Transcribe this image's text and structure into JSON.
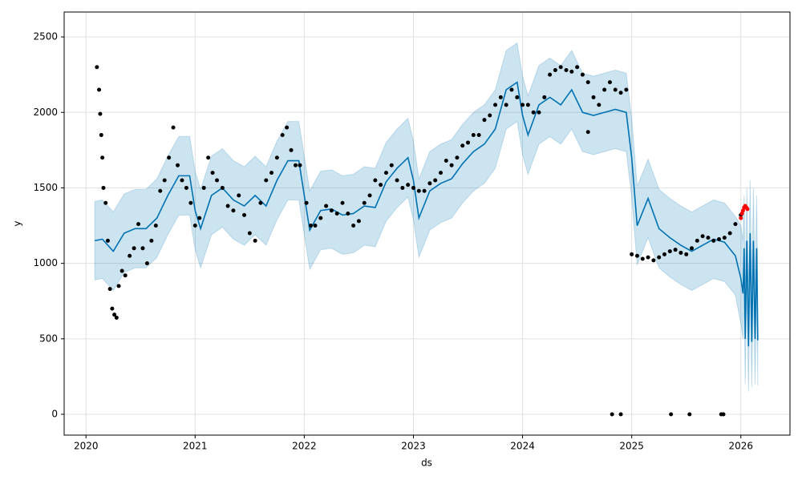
{
  "chart_data": {
    "type": "forecast",
    "xlabel": "ds",
    "ylabel": "y",
    "xlim": [
      2019.8,
      2026.45
    ],
    "xticks": [
      2020,
      2021,
      2022,
      2023,
      2024,
      2025,
      2026
    ],
    "ylim": [
      -138,
      2665
    ],
    "yticks": [
      0,
      500,
      1000,
      1500,
      2000,
      2500
    ],
    "grid": true,
    "forecast": {
      "color": "#0072b2",
      "band_color": "#0072b2",
      "x": [
        2020.08,
        2020.15,
        2020.25,
        2020.35,
        2020.45,
        2020.55,
        2020.65,
        2020.75,
        2020.85,
        2020.95,
        2021.0,
        2021.05,
        2021.15,
        2021.25,
        2021.35,
        2021.45,
        2021.55,
        2021.65,
        2021.75,
        2021.85,
        2021.95,
        2022.0,
        2022.05,
        2022.15,
        2022.25,
        2022.35,
        2022.45,
        2022.55,
        2022.65,
        2022.75,
        2022.85,
        2022.95,
        2023.0,
        2023.05,
        2023.15,
        2023.25,
        2023.35,
        2023.45,
        2023.55,
        2023.65,
        2023.75,
        2023.85,
        2023.95,
        2024.0,
        2024.05,
        2024.15,
        2024.25,
        2024.35,
        2024.45,
        2024.55,
        2024.65,
        2024.75,
        2024.85,
        2024.95,
        2025.0,
        2025.05,
        2025.15,
        2025.25,
        2025.35,
        2025.45,
        2025.55,
        2025.65,
        2025.75,
        2025.85,
        2025.95,
        2026.0,
        2026.02,
        2026.03,
        2026.04,
        2026.055,
        2026.07,
        2026.085,
        2026.1,
        2026.115,
        2026.13,
        2026.145,
        2026.155
      ],
      "values": [
        1150,
        1160,
        1080,
        1200,
        1230,
        1230,
        1300,
        1450,
        1580,
        1580,
        1350,
        1230,
        1450,
        1500,
        1420,
        1380,
        1450,
        1380,
        1550,
        1680,
        1680,
        1450,
        1220,
        1350,
        1360,
        1320,
        1330,
        1380,
        1370,
        1540,
        1630,
        1700,
        1550,
        1300,
        1480,
        1530,
        1560,
        1660,
        1740,
        1790,
        1890,
        2150,
        2200,
        1980,
        1850,
        2050,
        2100,
        2050,
        2150,
        2000,
        1980,
        2000,
        2020,
        2000,
        1700,
        1250,
        1430,
        1230,
        1170,
        1120,
        1080,
        1120,
        1160,
        1140,
        1050,
        900,
        800,
        1100,
        500,
        1150,
        450,
        1200,
        480,
        1150,
        500,
        1100,
        490
      ],
      "upper": [
        1410,
        1420,
        1340,
        1460,
        1490,
        1490,
        1560,
        1710,
        1840,
        1840,
        1610,
        1490,
        1710,
        1760,
        1680,
        1640,
        1710,
        1640,
        1810,
        1940,
        1940,
        1710,
        1480,
        1610,
        1620,
        1580,
        1590,
        1640,
        1630,
        1800,
        1890,
        1960,
        1810,
        1560,
        1740,
        1790,
        1820,
        1920,
        2000,
        2050,
        2150,
        2410,
        2460,
        2240,
        2110,
        2310,
        2360,
        2310,
        2410,
        2260,
        2240,
        2260,
        2280,
        2260,
        1960,
        1510,
        1690,
        1490,
        1430,
        1380,
        1340,
        1380,
        1420,
        1400,
        1310,
        1250,
        1150,
        1450,
        850,
        1500,
        800,
        1550,
        830,
        1500,
        850,
        1450,
        840
      ],
      "lower": [
        890,
        900,
        820,
        940,
        970,
        970,
        1040,
        1190,
        1320,
        1320,
        1090,
        970,
        1190,
        1240,
        1160,
        1120,
        1190,
        1120,
        1290,
        1420,
        1420,
        1190,
        960,
        1090,
        1100,
        1060,
        1070,
        1120,
        1110,
        1280,
        1370,
        1440,
        1290,
        1040,
        1220,
        1270,
        1300,
        1400,
        1480,
        1530,
        1630,
        1890,
        1940,
        1720,
        1590,
        1790,
        1840,
        1790,
        1890,
        1740,
        1720,
        1740,
        1760,
        1740,
        1440,
        990,
        1170,
        970,
        910,
        860,
        820,
        860,
        900,
        880,
        790,
        600,
        500,
        800,
        200,
        850,
        150,
        900,
        180,
        850,
        200,
        800,
        190
      ]
    },
    "observed": {
      "color": "#000000",
      "x": [
        2020.1,
        2020.12,
        2020.13,
        2020.14,
        2020.15,
        2020.16,
        2020.18,
        2020.2,
        2020.22,
        2020.24,
        2020.26,
        2020.28,
        2020.3,
        2020.33,
        2020.36,
        2020.4,
        2020.44,
        2020.48,
        2020.52,
        2020.56,
        2020.6,
        2020.64,
        2020.68,
        2020.72,
        2020.76,
        2020.8,
        2020.84,
        2020.88,
        2020.92,
        2020.96,
        2021.0,
        2021.04,
        2021.08,
        2021.12,
        2021.16,
        2021.2,
        2021.25,
        2021.3,
        2021.35,
        2021.4,
        2021.45,
        2021.5,
        2021.55,
        2021.6,
        2021.65,
        2021.7,
        2021.75,
        2021.8,
        2021.84,
        2021.88,
        2021.92,
        2021.96,
        2022.02,
        2022.06,
        2022.1,
        2022.15,
        2022.2,
        2022.25,
        2022.3,
        2022.35,
        2022.4,
        2022.45,
        2022.5,
        2022.55,
        2022.6,
        2022.65,
        2022.7,
        2022.75,
        2022.8,
        2022.85,
        2022.9,
        2022.95,
        2023.0,
        2023.05,
        2023.1,
        2023.15,
        2023.2,
        2023.25,
        2023.3,
        2023.35,
        2023.4,
        2023.45,
        2023.5,
        2023.55,
        2023.6,
        2023.65,
        2023.7,
        2023.75,
        2023.8,
        2023.85,
        2023.9,
        2023.95,
        2024.0,
        2024.05,
        2024.1,
        2024.15,
        2024.2,
        2024.25,
        2024.3,
        2024.35,
        2024.4,
        2024.45,
        2024.5,
        2024.55,
        2024.6,
        2024.65,
        2024.7,
        2024.75,
        2024.8,
        2024.85,
        2024.9,
        2024.95,
        2025.0,
        2025.05,
        2025.1,
        2025.15,
        2025.2,
        2025.25,
        2025.3,
        2025.35,
        2025.4,
        2025.45,
        2025.5,
        2025.55,
        2025.6,
        2025.65,
        2025.7,
        2025.75,
        2025.8,
        2025.85,
        2025.9,
        2025.95,
        2026.0,
        2024.82,
        2024.9,
        2025.36,
        2025.53,
        2025.82,
        2025.84,
        2024.6
      ],
      "values": [
        2300,
        2150,
        1990,
        1850,
        1700,
        1500,
        1400,
        1150,
        830,
        700,
        660,
        640,
        850,
        950,
        920,
        1050,
        1100,
        1260,
        1100,
        1000,
        1150,
        1250,
        1480,
        1550,
        1700,
        1900,
        1650,
        1550,
        1500,
        1400,
        1250,
        1300,
        1500,
        1700,
        1600,
        1550,
        1500,
        1380,
        1350,
        1450,
        1320,
        1200,
        1150,
        1400,
        1550,
        1600,
        1700,
        1850,
        1900,
        1750,
        1650,
        1650,
        1400,
        1250,
        1250,
        1300,
        1380,
        1350,
        1330,
        1400,
        1330,
        1250,
        1280,
        1400,
        1450,
        1550,
        1520,
        1600,
        1650,
        1550,
        1500,
        1520,
        1500,
        1480,
        1480,
        1530,
        1550,
        1600,
        1680,
        1650,
        1700,
        1780,
        1800,
        1850,
        1850,
        1950,
        1980,
        2050,
        2100,
        2050,
        2150,
        2100,
        2050,
        2050,
        2000,
        2000,
        2100,
        2250,
        2280,
        2300,
        2280,
        2270,
        2300,
        2250,
        2200,
        2100,
        2050,
        2150,
        2200,
        2150,
        2130,
        2150,
        1060,
        1050,
        1030,
        1040,
        1020,
        1040,
        1060,
        1080,
        1090,
        1070,
        1060,
        1100,
        1150,
        1180,
        1170,
        1150,
        1160,
        1170,
        1200,
        1260,
        1320,
        0,
        0,
        0,
        0,
        0,
        0,
        1870
      ]
    },
    "recent": {
      "color": "#ff0000",
      "x": [
        2026.0,
        2026.01,
        2026.02,
        2026.03,
        2026.04,
        2026.05,
        2026.06
      ],
      "values": [
        1300,
        1330,
        1350,
        1370,
        1380,
        1370,
        1360
      ]
    }
  }
}
